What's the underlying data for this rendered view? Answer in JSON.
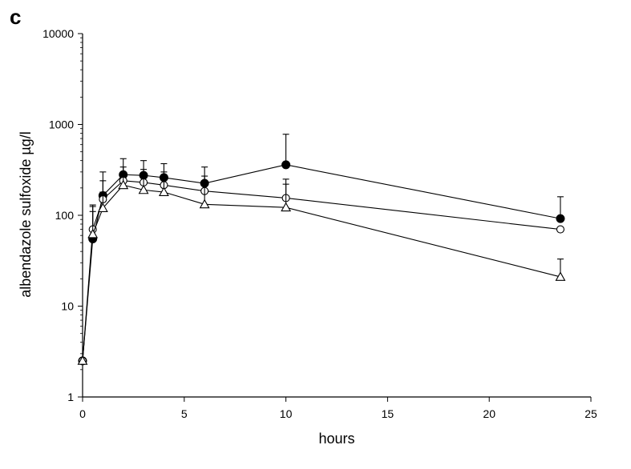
{
  "panel_label": "c",
  "chart_data": {
    "type": "line",
    "title": "",
    "xlabel": "hours",
    "ylabel": "albendazole sulfoxide µg/l",
    "xlim": [
      0,
      25
    ],
    "ylim": [
      1,
      10000
    ],
    "yscale": "log",
    "x_ticks": [
      0,
      5,
      10,
      15,
      20,
      25
    ],
    "y_ticks": [
      1,
      10,
      100,
      1000,
      10000
    ],
    "grid": false,
    "legend": "none",
    "x": [
      0,
      0.5,
      1,
      2,
      3,
      4,
      6,
      10,
      23.5
    ],
    "series": [
      {
        "marker": "filled-circle",
        "values": [
          2.5,
          55,
          165,
          280,
          275,
          260,
          225,
          360,
          92
        ],
        "error_upper": [
          null,
          125,
          300,
          420,
          400,
          370,
          340,
          780,
          160
        ]
      },
      {
        "marker": "open-circle",
        "values": [
          2.5,
          70,
          150,
          240,
          230,
          215,
          185,
          155,
          70
        ],
        "error_upper": [
          null,
          130,
          240,
          340,
          320,
          300,
          270,
          250,
          null
        ]
      },
      {
        "marker": "open-triangle",
        "values": [
          2.5,
          62,
          120,
          215,
          190,
          180,
          132,
          122,
          21
        ],
        "error_upper": [
          null,
          110,
          180,
          290,
          280,
          260,
          220,
          220,
          33
        ]
      }
    ]
  }
}
